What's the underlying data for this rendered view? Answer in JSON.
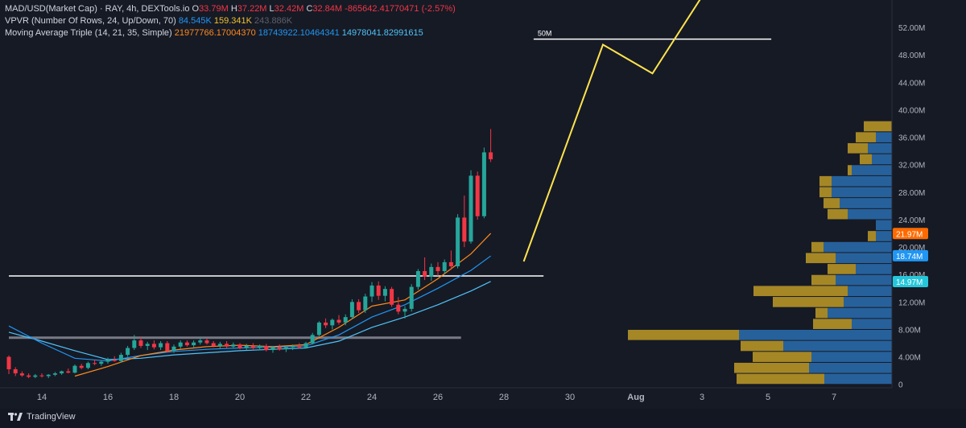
{
  "legend": {
    "symbol": "MAD/USD(Market Cap) · RAY, 4h, DEXTools.io",
    "o_label": "O",
    "o": "33.79M",
    "h_label": "H",
    "h": "37.22M",
    "l_label": "L",
    "l": "32.42M",
    "c_label": "C",
    "c": "32.84M",
    "change": "-865642.41770471 (-2.57%)",
    "vpvr_name": "VPVR (Number Of Rows, 24, Up/Down, 70)",
    "vpvr_up": "84.545K",
    "vpvr_down": "159.341K",
    "vpvr_total": "243.886K",
    "ma_name": "Moving Average Triple (14, 21, 35, Simple)",
    "ma1": "21977766.17004370",
    "ma2": "18743922.10464341",
    "ma3": "14978041.82991615"
  },
  "brand": "TradingView",
  "colors": {
    "background": "#161a25",
    "up": "#26a69a",
    "down": "#f23645",
    "ma_fast": "#ff8a1c",
    "ma_mid": "#2196f3",
    "ma_slow": "#4fc3f7",
    "projection": "#ffe34d",
    "vpvr_up": "#2a6fb0",
    "vpvr_down": "#c9a227"
  },
  "chart_data": {
    "type": "candlestick",
    "x_ticks": [
      "14",
      "16",
      "18",
      "20",
      "22",
      "24",
      "26",
      "28",
      "30",
      "Aug",
      "3",
      "5",
      "7"
    ],
    "y_ticks": [
      "0",
      "4.00M",
      "8.00M",
      "12.00M",
      "16.00M",
      "20.00M",
      "24.00M",
      "28.00M",
      "32.00M",
      "36.00M",
      "40.00M",
      "44.00M",
      "48.00M",
      "52.00M"
    ],
    "ylim": [
      -0.5,
      56
    ],
    "badges": [
      {
        "value": 21.97,
        "label": "21.97M",
        "color": "#ff6a00"
      },
      {
        "value": 18.74,
        "label": "18.74M",
        "color": "#2196f3"
      },
      {
        "value": 14.97,
        "label": "14.97M",
        "color": "#26c6da"
      }
    ],
    "candles": [
      [
        13.0,
        4.0,
        4.2,
        1.5,
        2.2
      ],
      [
        13.2,
        2.2,
        2.5,
        1.2,
        1.6
      ],
      [
        13.4,
        1.6,
        1.9,
        1.1,
        1.3
      ],
      [
        13.6,
        1.3,
        1.6,
        0.9,
        1.1
      ],
      [
        13.8,
        1.1,
        1.5,
        0.9,
        1.3
      ],
      [
        14.0,
        1.3,
        1.6,
        1.0,
        1.2
      ],
      [
        14.2,
        1.2,
        1.5,
        0.9,
        1.4
      ],
      [
        14.4,
        1.4,
        1.8,
        1.2,
        1.6
      ],
      [
        14.6,
        1.6,
        2.0,
        1.4,
        1.9
      ],
      [
        14.8,
        1.9,
        2.3,
        1.6,
        1.7
      ],
      [
        15.0,
        1.7,
        2.9,
        1.6,
        2.7
      ],
      [
        15.2,
        2.7,
        3.0,
        2.2,
        2.4
      ],
      [
        15.4,
        2.4,
        3.3,
        2.2,
        3.1
      ],
      [
        15.6,
        3.1,
        3.6,
        2.8,
        3.0
      ],
      [
        15.8,
        3.0,
        3.5,
        2.7,
        3.3
      ],
      [
        16.0,
        3.3,
        3.9,
        3.0,
        3.6
      ],
      [
        16.2,
        3.6,
        4.1,
        3.3,
        3.4
      ],
      [
        16.4,
        3.4,
        4.6,
        3.2,
        4.3
      ],
      [
        16.6,
        4.3,
        5.6,
        4.0,
        5.3
      ],
      [
        16.8,
        5.3,
        7.2,
        5.0,
        6.4
      ],
      [
        17.0,
        6.4,
        6.9,
        5.3,
        5.6
      ],
      [
        17.2,
        5.6,
        6.2,
        5.0,
        5.9
      ],
      [
        17.4,
        5.9,
        6.4,
        5.1,
        5.4
      ],
      [
        17.6,
        5.4,
        6.3,
        5.0,
        6.0
      ],
      [
        17.8,
        6.0,
        6.3,
        4.6,
        4.9
      ],
      [
        18.0,
        4.9,
        5.8,
        4.6,
        5.5
      ],
      [
        18.2,
        5.5,
        6.4,
        5.2,
        6.1
      ],
      [
        18.4,
        6.1,
        6.4,
        5.5,
        5.7
      ],
      [
        18.6,
        5.7,
        6.4,
        5.4,
        6.1
      ],
      [
        18.8,
        6.1,
        6.8,
        5.8,
        6.4
      ],
      [
        19.0,
        6.4,
        6.7,
        5.8,
        6.0
      ],
      [
        19.2,
        6.0,
        6.3,
        5.4,
        5.6
      ],
      [
        19.4,
        5.6,
        6.2,
        5.2,
        5.9
      ],
      [
        19.6,
        5.9,
        6.3,
        5.3,
        5.5
      ],
      [
        19.8,
        5.5,
        6.1,
        5.2,
        5.8
      ],
      [
        20.0,
        5.8,
        6.0,
        5.1,
        5.3
      ],
      [
        20.2,
        5.3,
        5.9,
        5.0,
        5.6
      ],
      [
        20.4,
        5.6,
        6.0,
        5.1,
        5.3
      ],
      [
        20.6,
        5.3,
        5.8,
        5.0,
        5.6
      ],
      [
        20.8,
        5.6,
        5.9,
        4.8,
        5.0
      ],
      [
        21.0,
        5.0,
        5.6,
        4.6,
        5.4
      ],
      [
        21.2,
        5.4,
        5.8,
        4.9,
        5.1
      ],
      [
        21.4,
        5.1,
        5.6,
        4.7,
        5.4
      ],
      [
        21.6,
        5.4,
        5.8,
        5.0,
        5.6
      ],
      [
        21.8,
        5.6,
        6.0,
        5.2,
        5.4
      ],
      [
        22.0,
        5.4,
        6.2,
        5.2,
        6.0
      ],
      [
        22.2,
        6.0,
        7.5,
        5.8,
        7.2
      ],
      [
        22.4,
        7.2,
        9.2,
        7.0,
        9.0
      ],
      [
        22.6,
        9.0,
        9.6,
        8.2,
        8.6
      ],
      [
        22.8,
        8.6,
        9.6,
        8.0,
        9.4
      ],
      [
        23.0,
        9.4,
        10.1,
        8.7,
        9.0
      ],
      [
        23.2,
        9.0,
        10.2,
        8.6,
        9.8
      ],
      [
        23.4,
        9.8,
        12.4,
        9.5,
        12.0
      ],
      [
        23.6,
        12.0,
        12.4,
        10.4,
        10.8
      ],
      [
        23.8,
        10.8,
        13.2,
        10.4,
        12.8
      ],
      [
        24.0,
        12.8,
        14.9,
        12.0,
        14.4
      ],
      [
        24.2,
        14.4,
        15.0,
        12.3,
        12.9
      ],
      [
        24.4,
        12.9,
        14.3,
        12.1,
        13.9
      ],
      [
        24.6,
        13.9,
        14.2,
        11.3,
        11.6
      ],
      [
        24.8,
        11.6,
        12.7,
        10.2,
        10.6
      ],
      [
        25.0,
        10.6,
        11.4,
        9.6,
        11.0
      ],
      [
        25.2,
        11.0,
        14.6,
        10.6,
        14.2
      ],
      [
        25.4,
        14.2,
        16.8,
        13.8,
        16.5
      ],
      [
        25.6,
        16.5,
        18.5,
        15.2,
        15.7
      ],
      [
        25.8,
        15.7,
        17.6,
        15.1,
        17.1
      ],
      [
        26.0,
        17.1,
        17.8,
        15.8,
        16.5
      ],
      [
        26.2,
        16.5,
        18.2,
        16.1,
        17.8
      ],
      [
        26.4,
        17.8,
        19.5,
        16.7,
        17.2
      ],
      [
        26.6,
        17.2,
        24.8,
        16.9,
        24.3
      ],
      [
        26.8,
        24.3,
        27.5,
        20.0,
        20.8
      ],
      [
        27.0,
        20.8,
        31.2,
        20.5,
        30.4
      ],
      [
        27.2,
        30.4,
        31.0,
        24.0,
        24.5
      ],
      [
        27.4,
        24.5,
        34.5,
        24.2,
        33.8
      ],
      [
        27.6,
        33.8,
        37.2,
        32.4,
        32.8
      ]
    ],
    "ma_fast": [
      [
        15.0,
        1.2
      ],
      [
        16.0,
        2.6
      ],
      [
        17.0,
        4.2
      ],
      [
        18.0,
        5.0
      ],
      [
        19.0,
        5.5
      ],
      [
        20.0,
        5.7
      ],
      [
        21.0,
        5.5
      ],
      [
        22.0,
        5.8
      ],
      [
        23.0,
        8.3
      ],
      [
        24.0,
        11.4
      ],
      [
        25.0,
        12.3
      ],
      [
        26.0,
        15.4
      ],
      [
        27.0,
        19.0
      ],
      [
        27.6,
        22.0
      ]
    ],
    "ma_mid": [
      [
        13.0,
        8.5
      ],
      [
        14.0,
        6.0
      ],
      [
        15.0,
        3.8
      ],
      [
        16.0,
        3.4
      ],
      [
        17.0,
        4.2
      ],
      [
        18.0,
        4.8
      ],
      [
        19.0,
        5.1
      ],
      [
        20.0,
        5.3
      ],
      [
        21.0,
        5.4
      ],
      [
        22.0,
        5.6
      ],
      [
        23.0,
        7.2
      ],
      [
        24.0,
        9.8
      ],
      [
        25.0,
        11.6
      ],
      [
        26.0,
        14.0
      ],
      [
        27.0,
        16.6
      ],
      [
        27.6,
        18.7
      ]
    ],
    "ma_slow": [
      [
        13.0,
        7.6
      ],
      [
        14.0,
        6.3
      ],
      [
        15.0,
        4.9
      ],
      [
        16.0,
        3.6
      ],
      [
        17.0,
        3.8
      ],
      [
        18.0,
        4.3
      ],
      [
        19.0,
        4.6
      ],
      [
        20.0,
        4.9
      ],
      [
        21.0,
        5.1
      ],
      [
        22.0,
        5.3
      ],
      [
        23.0,
        6.3
      ],
      [
        24.0,
        8.3
      ],
      [
        25.0,
        9.8
      ],
      [
        26.0,
        11.6
      ],
      [
        27.0,
        13.6
      ],
      [
        27.6,
        15.0
      ]
    ],
    "projection": [
      [
        28.6,
        17.9
      ],
      [
        31.0,
        49.5
      ],
      [
        32.5,
        45.3
      ],
      [
        34.2,
        58.0
      ]
    ],
    "levels": [
      {
        "x1": 13.0,
        "x2": 29.2,
        "y": 15.8,
        "color": "#ffffff"
      },
      {
        "x1": 13.0,
        "x2": 26.7,
        "y": 6.8,
        "color": "#787b86"
      },
      {
        "x1": 28.9,
        "x2": 36.1,
        "y": 50.3,
        "color": "#ffffff",
        "label": "50M"
      }
    ],
    "vpvr": [
      {
        "y": 0.0,
        "up": 84,
        "down": 109
      },
      {
        "y": 1.6,
        "up": 103,
        "down": 93
      },
      {
        "y": 3.2,
        "up": 100,
        "down": 73
      },
      {
        "y": 4.8,
        "up": 135,
        "down": 53
      },
      {
        "y": 6.4,
        "up": 190,
        "down": 138
      },
      {
        "y": 8.0,
        "up": 50,
        "down": 48
      },
      {
        "y": 9.6,
        "up": 80,
        "down": 15
      },
      {
        "y": 11.2,
        "up": 60,
        "down": 88
      },
      {
        "y": 12.8,
        "up": 55,
        "down": 117
      },
      {
        "y": 14.4,
        "up": 70,
        "down": 30
      },
      {
        "y": 16.0,
        "up": 45,
        "down": 35
      },
      {
        "y": 17.6,
        "up": 70,
        "down": 37
      },
      {
        "y": 19.2,
        "up": 85,
        "down": 15
      },
      {
        "y": 20.8,
        "up": 20,
        "down": 10
      },
      {
        "y": 22.4,
        "up": 20,
        "down": 0
      },
      {
        "y": 24.0,
        "up": 55,
        "down": 25
      },
      {
        "y": 25.6,
        "up": 65,
        "down": 20
      },
      {
        "y": 27.2,
        "up": 75,
        "down": 15
      },
      {
        "y": 28.8,
        "up": 75,
        "down": 15
      },
      {
        "y": 30.4,
        "up": 50,
        "down": 5
      },
      {
        "y": 32.0,
        "up": 25,
        "down": 15
      },
      {
        "y": 33.6,
        "up": 30,
        "down": 25
      },
      {
        "y": 35.2,
        "up": 20,
        "down": 25
      },
      {
        "y": 36.8,
        "up": 0,
        "down": 35
      }
    ]
  }
}
